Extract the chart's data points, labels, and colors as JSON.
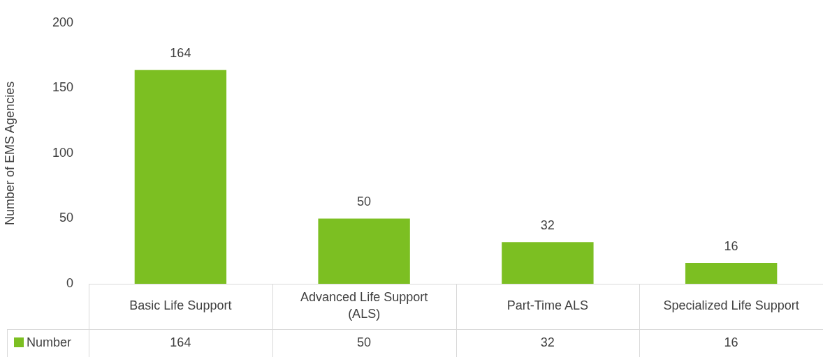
{
  "chart_data": {
    "type": "bar",
    "ylabel": "Number of EMS Agencies",
    "categories": [
      "Basic Life Support",
      "Advanced Life Support (ALS)",
      "Part-Time ALS",
      "Specialized Life Support"
    ],
    "series": [
      {
        "name": "Number",
        "color": "#7cbf22",
        "values": [
          164,
          50,
          32,
          16
        ],
        "value_labels": [
          "164",
          "50",
          "32",
          "16"
        ]
      }
    ],
    "annotations": [
      {
        "text": "164",
        "x": "Basic Life Support",
        "y": 164
      },
      {
        "text": "50",
        "x": "Advanced Life Support (ALS)",
        "y": 50
      },
      {
        "text": "32",
        "x": "Part-Time ALS",
        "y": 32
      },
      {
        "text": "16",
        "x": "Specialized Life Support",
        "y": 16
      }
    ],
    "ylim": [
      0,
      200
    ],
    "yticks": [
      0,
      50,
      100,
      150,
      200
    ],
    "legend": "bottom"
  }
}
